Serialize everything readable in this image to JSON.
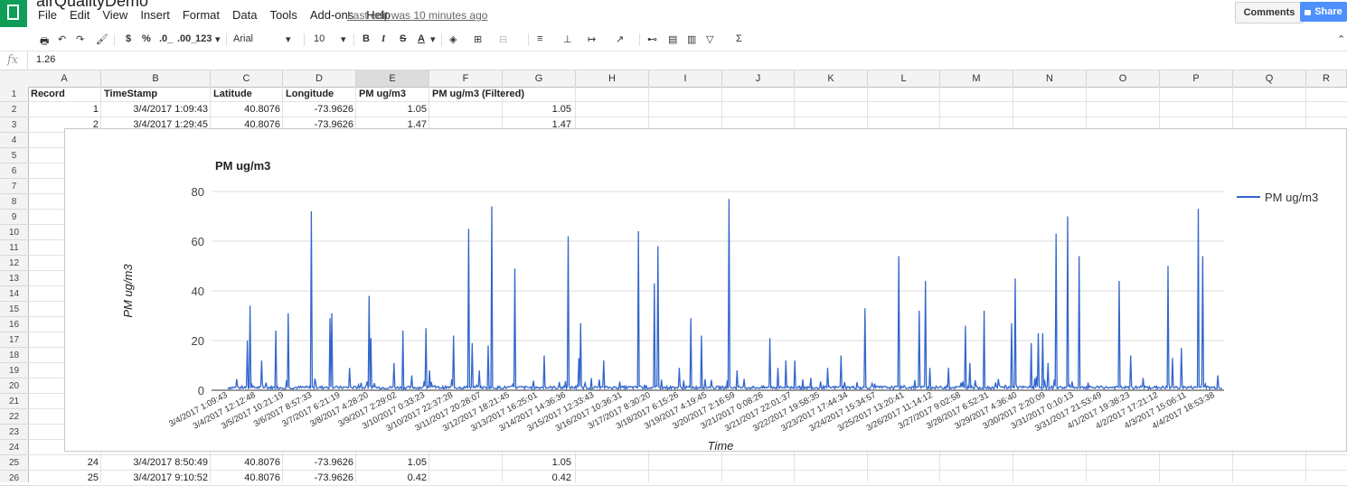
{
  "app": {
    "doc_title": "airQualityDemo",
    "menu": [
      "File",
      "Edit",
      "View",
      "Insert",
      "Format",
      "Data",
      "Tools",
      "Add-ons",
      "Help"
    ],
    "last_edit": "Last edit was 10 minutes ago",
    "comments_label": "Comments",
    "share_label": "Share"
  },
  "toolbar": {
    "currency": "$",
    "percent": "%",
    "dec_decrease": ".0_",
    "dec_increase": ".00_",
    "more_formats": "123",
    "font": "Arial",
    "font_size": "10",
    "bold": "B",
    "italic": "I",
    "strike": "S",
    "text_color": "A",
    "sum": "Σ"
  },
  "formula_bar": {
    "fx": "fx",
    "value": "1.26"
  },
  "columns": [
    "A",
    "B",
    "C",
    "D",
    "E",
    "F",
    "G",
    "H",
    "I",
    "J",
    "K",
    "L",
    "M",
    "N",
    "O",
    "P",
    "Q",
    "R"
  ],
  "rows_visible": [
    "1",
    "2",
    "3",
    "4",
    "5",
    "6",
    "7",
    "8",
    "9",
    "10",
    "11",
    "12",
    "13",
    "14",
    "15",
    "16",
    "17",
    "18",
    "19",
    "20",
    "21",
    "22",
    "23",
    "24",
    "25",
    "26"
  ],
  "header_row": [
    "Record",
    "TimeStamp",
    "Latitude",
    "Longitude",
    "PM ug/m3",
    "PM ug/m3 (Filtered)"
  ],
  "data_rows": [
    {
      "row": "2",
      "cells": [
        "1",
        "3/4/2017 1:09:43",
        "40.8076",
        "-73.9626",
        "1.05",
        "1.05"
      ]
    },
    {
      "row": "3",
      "cells": [
        "2",
        "3/4/2017 1:29:45",
        "40.8076",
        "-73.9626",
        "1.47",
        "1.47"
      ]
    },
    {
      "row": "25",
      "cells": [
        "24",
        "3/4/2017 8:50:49",
        "40.8076",
        "-73.9626",
        "1.05",
        "1.05"
      ]
    },
    {
      "row": "26",
      "cells": [
        "25",
        "3/4/2017 9:10:52",
        "40.8076",
        "-73.9626",
        "0.42",
        "0.42"
      ]
    }
  ],
  "chart_data": {
    "type": "line",
    "title": "PM ug/m3",
    "xlabel": "Time",
    "ylabel": "PM ug/m3",
    "ylim": [
      0,
      80
    ],
    "yticks": [
      "0",
      "20",
      "40",
      "60",
      "80"
    ],
    "grid": true,
    "legend": "right",
    "series": [
      {
        "name": "PM ug/m3",
        "color": "#3366cc"
      }
    ],
    "x_tick_labels": [
      "3/4/2017 1:09:43",
      "3/4/2017 12:12:48",
      "3/5/2017 10:21:19",
      "3/6/2017 8:57:33",
      "3/7/2017 6:21:19",
      "3/8/2017 4:28:20",
      "3/9/2017 2:29:02",
      "3/10/2017 0:33:23",
      "3/10/2017 22:37:28",
      "3/11/2017 20:28:07",
      "3/12/2017 18:21:45",
      "3/13/2017 16:25:01",
      "3/14/2017 14:36:36",
      "3/15/2017 12:33:43",
      "3/16/2017 10:36:31",
      "3/17/2017 8:30:20",
      "3/18/2017 6:15:26",
      "3/19/2017 4:19:45",
      "3/20/2017 2:16:59",
      "3/21/2017 0:08:26",
      "3/21/2017 22:01:37",
      "3/22/2017 19:58:35",
      "3/23/2017 17:44:34",
      "3/24/2017 15:34:57",
      "3/25/2017 13:20:41",
      "3/26/2017 11:14:12",
      "3/27/2017 9:02:58",
      "3/28/2017 6:52:31",
      "3/29/2017 4:36:40",
      "3/30/2017 2:20:09",
      "3/31/2017 0:10:13",
      "3/31/2017 21:53:49",
      "4/1/2017 19:38:23",
      "4/2/2017 17:21:12",
      "4/3/2017 15:06:11",
      "4/4/2017 18:53:38"
    ],
    "spikes": [
      [
        0.02,
        20
      ],
      [
        0.023,
        34
      ],
      [
        0.035,
        12
      ],
      [
        0.05,
        24
      ],
      [
        0.063,
        31
      ],
      [
        0.087,
        72
      ],
      [
        0.107,
        29
      ],
      [
        0.109,
        31
      ],
      [
        0.127,
        9
      ],
      [
        0.148,
        38
      ],
      [
        0.15,
        21
      ],
      [
        0.174,
        11
      ],
      [
        0.183,
        24
      ],
      [
        0.192,
        6
      ],
      [
        0.207,
        25
      ],
      [
        0.211,
        8
      ],
      [
        0.236,
        22
      ],
      [
        0.252,
        65
      ],
      [
        0.256,
        19
      ],
      [
        0.263,
        8
      ],
      [
        0.272,
        18
      ],
      [
        0.276,
        74
      ],
      [
        0.3,
        49
      ],
      [
        0.331,
        14
      ],
      [
        0.356,
        62
      ],
      [
        0.367,
        13
      ],
      [
        0.369,
        27
      ],
      [
        0.393,
        12
      ],
      [
        0.429,
        64
      ],
      [
        0.446,
        43
      ],
      [
        0.45,
        58
      ],
      [
        0.472,
        9
      ],
      [
        0.484,
        29
      ],
      [
        0.495,
        22
      ],
      [
        0.524,
        77
      ],
      [
        0.533,
        8
      ],
      [
        0.567,
        21
      ],
      [
        0.575,
        9
      ],
      [
        0.584,
        12
      ],
      [
        0.593,
        12
      ],
      [
        0.627,
        9
      ],
      [
        0.641,
        14
      ],
      [
        0.666,
        33
      ],
      [
        0.702,
        54
      ],
      [
        0.723,
        32
      ],
      [
        0.73,
        44
      ],
      [
        0.734,
        9
      ],
      [
        0.754,
        9
      ],
      [
        0.771,
        26
      ],
      [
        0.776,
        11
      ],
      [
        0.791,
        32
      ],
      [
        0.82,
        27
      ],
      [
        0.823,
        45
      ],
      [
        0.84,
        19
      ],
      [
        0.848,
        23
      ],
      [
        0.852,
        23
      ],
      [
        0.858,
        11
      ],
      [
        0.866,
        63
      ],
      [
        0.878,
        70
      ],
      [
        0.89,
        54
      ],
      [
        0.932,
        44
      ],
      [
        0.944,
        14
      ],
      [
        0.983,
        50
      ],
      [
        0.988,
        13
      ],
      [
        0.997,
        17
      ],
      [
        1.015,
        73
      ],
      [
        1.02,
        54
      ],
      [
        1.035,
        6
      ]
    ],
    "baseline": 1.3
  }
}
